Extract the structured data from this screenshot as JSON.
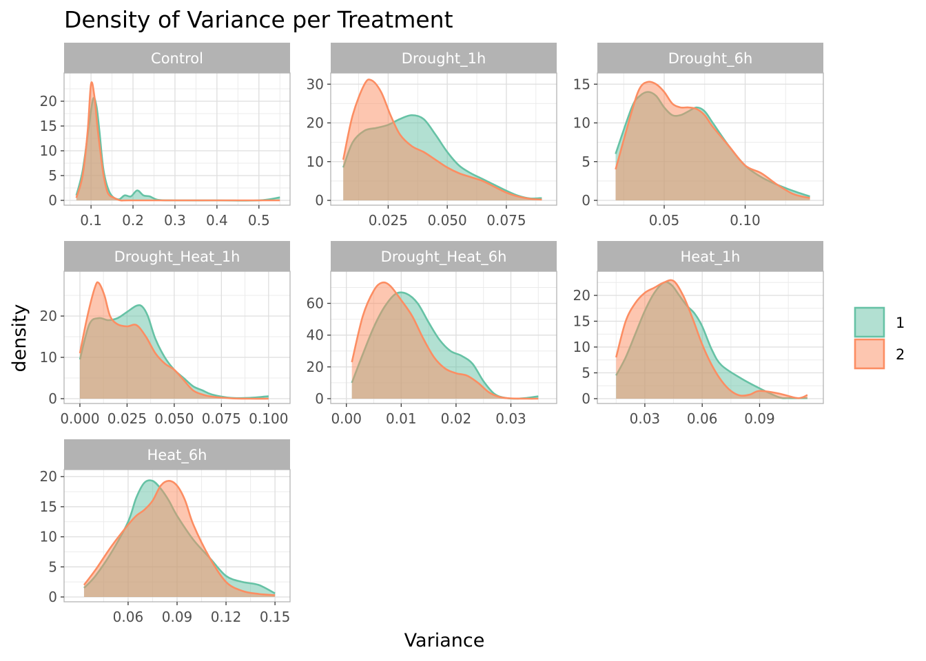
{
  "chart_data": {
    "type": "area",
    "title": "Density of Variance per Treatment",
    "xlabel": "Variance",
    "ylabel": "density",
    "legend": {
      "placement": "right",
      "entries": [
        {
          "label": "1",
          "color": "#66C2A5"
        },
        {
          "label": "2",
          "color": "#FC8D62"
        }
      ]
    },
    "grid": true,
    "panels": [
      {
        "name": "Control",
        "xlim": [
          0.06,
          0.55
        ],
        "ylim": [
          0,
          25
        ],
        "xticks": [
          0.1,
          0.2,
          0.3,
          0.4,
          0.5
        ],
        "xtick_labels": [
          "0.1",
          "0.2",
          "0.3",
          "0.4",
          "0.5"
        ],
        "yticks": [
          0,
          5,
          10,
          15,
          20
        ],
        "ytick_labels": [
          "0",
          "5",
          "10",
          "15",
          "20"
        ],
        "series": [
          {
            "name": "1",
            "x": [
              0.065,
              0.08,
              0.095,
              0.105,
              0.113,
              0.12,
              0.13,
              0.145,
              0.165,
              0.18,
              0.195,
              0.21,
              0.225,
              0.24,
              0.26,
              0.3,
              0.4,
              0.5,
              0.55
            ],
            "y": [
              1.0,
              6.0,
              15.0,
              20.5,
              19.0,
              14.0,
              6.0,
              1.5,
              0.2,
              1.0,
              0.8,
              2.0,
              1.0,
              0.8,
              0.1,
              0.0,
              0.0,
              0.0,
              0.6
            ]
          },
          {
            "name": "2",
            "x": [
              0.065,
              0.08,
              0.092,
              0.1,
              0.108,
              0.115,
              0.122,
              0.13,
              0.14,
              0.155,
              0.17,
              0.19,
              0.3,
              0.4,
              0.5,
              0.55
            ],
            "y": [
              0.5,
              5.0,
              14.0,
              23.5,
              21.0,
              15.0,
              10.0,
              5.0,
              1.5,
              0.5,
              0.0,
              0.0,
              0.0,
              0.0,
              0.0,
              0.0
            ]
          }
        ]
      },
      {
        "name": "Drought_1h",
        "xlim": [
          0.005,
          0.092
        ],
        "ylim": [
          0,
          32
        ],
        "xticks": [
          0.025,
          0.05,
          0.075
        ],
        "xtick_labels": [
          "0.025",
          "0.050",
          "0.075"
        ],
        "yticks": [
          0,
          10,
          20,
          30
        ],
        "ytick_labels": [
          "0",
          "10",
          "20",
          "30"
        ],
        "series": [
          {
            "name": "1",
            "x": [
              0.006,
              0.01,
              0.015,
              0.02,
              0.025,
              0.03,
              0.035,
              0.04,
              0.045,
              0.05,
              0.055,
              0.06,
              0.065,
              0.07,
              0.075,
              0.08,
              0.085,
              0.09
            ],
            "y": [
              8.5,
              15.0,
              18.0,
              18.7,
              19.5,
              21.0,
              22.0,
              21.0,
              17.0,
              12.5,
              9.0,
              7.0,
              5.5,
              4.0,
              2.5,
              1.2,
              0.5,
              0.6
            ]
          },
          {
            "name": "2",
            "x": [
              0.006,
              0.01,
              0.015,
              0.018,
              0.022,
              0.026,
              0.03,
              0.035,
              0.04,
              0.045,
              0.05,
              0.055,
              0.06,
              0.065,
              0.07,
              0.075,
              0.08,
              0.085,
              0.09
            ],
            "y": [
              10.5,
              22.0,
              30.0,
              31.0,
              28.0,
              22.0,
              17.0,
              14.0,
              12.5,
              10.5,
              8.5,
              7.0,
              6.0,
              5.0,
              3.5,
              2.0,
              1.0,
              0.4,
              0.2
            ]
          }
        ]
      },
      {
        "name": "Drought_6h",
        "xlim": [
          0.015,
          0.142
        ],
        "ylim": [
          0,
          16
        ],
        "xticks": [
          0.05,
          0.1
        ],
        "xtick_labels": [
          "0.05",
          "0.10"
        ],
        "yticks": [
          0,
          5,
          10,
          15
        ],
        "ytick_labels": [
          "0",
          "5",
          "10",
          "15"
        ],
        "series": [
          {
            "name": "1",
            "x": [
              0.02,
              0.03,
              0.035,
              0.04,
              0.045,
              0.05,
              0.055,
              0.06,
              0.065,
              0.07,
              0.075,
              0.08,
              0.09,
              0.1,
              0.11,
              0.12,
              0.13,
              0.14
            ],
            "y": [
              6.0,
              12.0,
              13.5,
              14.0,
              13.5,
              12.0,
              11.0,
              11.0,
              11.5,
              12.0,
              11.5,
              10.0,
              7.0,
              4.5,
              3.0,
              2.0,
              1.2,
              0.5
            ]
          },
          {
            "name": "2",
            "x": [
              0.02,
              0.03,
              0.035,
              0.04,
              0.045,
              0.05,
              0.055,
              0.06,
              0.065,
              0.07,
              0.075,
              0.08,
              0.09,
              0.1,
              0.11,
              0.12,
              0.13,
              0.14
            ],
            "y": [
              4.0,
              11.5,
              14.5,
              15.3,
              15.0,
              14.0,
              12.5,
              12.0,
              12.0,
              11.8,
              11.0,
              9.5,
              7.0,
              4.5,
              3.5,
              2.0,
              0.8,
              0.3
            ]
          }
        ]
      },
      {
        "name": "Drought_Heat_1h",
        "xlim": [
          -0.003,
          0.106
        ],
        "ylim": [
          0,
          30
        ],
        "xticks": [
          0.0,
          0.025,
          0.05,
          0.075,
          0.1
        ],
        "xtick_labels": [
          "0.000",
          "0.025",
          "0.050",
          "0.075",
          "0.100"
        ],
        "yticks": [
          0,
          10,
          20
        ],
        "ytick_labels": [
          "0",
          "10",
          "20"
        ],
        "series": [
          {
            "name": "1",
            "x": [
              0.0,
              0.005,
              0.01,
              0.015,
              0.02,
              0.025,
              0.03,
              0.033,
              0.036,
              0.04,
              0.045,
              0.05,
              0.055,
              0.06,
              0.065,
              0.07,
              0.08,
              0.09,
              0.1
            ],
            "y": [
              9.5,
              18.0,
              19.5,
              19.0,
              19.5,
              21.0,
              22.5,
              22.3,
              20.0,
              14.5,
              10.0,
              7.0,
              5.0,
              3.0,
              2.0,
              1.0,
              0.2,
              0.2,
              0.6
            ]
          },
          {
            "name": "2",
            "x": [
              0.0,
              0.004,
              0.008,
              0.01,
              0.013,
              0.016,
              0.02,
              0.025,
              0.03,
              0.035,
              0.04,
              0.045,
              0.05,
              0.055,
              0.06,
              0.065,
              0.07,
              0.08,
              0.09,
              0.1
            ],
            "y": [
              11.0,
              20.0,
              27.0,
              28.0,
              25.0,
              20.0,
              18.0,
              17.5,
              17.8,
              15.0,
              11.0,
              8.5,
              7.0,
              4.5,
              2.0,
              1.0,
              0.5,
              0.1,
              0.0,
              0.0
            ]
          }
        ]
      },
      {
        "name": "Drought_Heat_6h",
        "xlim": [
          -0.001,
          0.0365
        ],
        "ylim": [
          0,
          78
        ],
        "xticks": [
          0.0,
          0.01,
          0.02,
          0.03
        ],
        "xtick_labels": [
          "0.00",
          "0.01",
          "0.02",
          "0.03"
        ],
        "yticks": [
          0,
          20,
          40,
          60
        ],
        "ytick_labels": [
          "0",
          "20",
          "40",
          "60"
        ],
        "series": [
          {
            "name": "1",
            "x": [
              0.001,
              0.003,
              0.005,
              0.007,
              0.009,
              0.011,
              0.013,
              0.015,
              0.017,
              0.019,
              0.021,
              0.023,
              0.025,
              0.027,
              0.029,
              0.031,
              0.033,
              0.035
            ],
            "y": [
              10.0,
              28.0,
              45.0,
              58.0,
              66.0,
              66.0,
              60.0,
              48.0,
              37.0,
              30.0,
              27.0,
              22.0,
              11.0,
              3.0,
              0.5,
              0.0,
              0.5,
              1.5
            ]
          },
          {
            "name": "2",
            "x": [
              0.001,
              0.003,
              0.005,
              0.0065,
              0.008,
              0.01,
              0.012,
              0.014,
              0.016,
              0.018,
              0.02,
              0.022,
              0.024,
              0.026,
              0.028,
              0.03,
              0.033,
              0.035
            ],
            "y": [
              23.0,
              52.0,
              68.0,
              73.0,
              71.0,
              62.0,
              52.0,
              38.0,
              26.0,
              19.0,
              16.0,
              14.5,
              10.0,
              4.0,
              1.0,
              0.2,
              0.0,
              0.0
            ]
          }
        ]
      },
      {
        "name": "Heat_1h",
        "xlim": [
          0.0105,
          0.118
        ],
        "ylim": [
          0,
          24
        ],
        "xticks": [
          0.03,
          0.06,
          0.09
        ],
        "xtick_labels": [
          "0.03",
          "0.06",
          "0.09"
        ],
        "yticks": [
          0,
          5,
          10,
          15,
          20
        ],
        "ytick_labels": [
          "0",
          "5",
          "10",
          "15",
          "20"
        ],
        "series": [
          {
            "name": "1",
            "x": [
              0.015,
              0.02,
              0.025,
              0.03,
              0.035,
              0.04,
              0.044,
              0.048,
              0.052,
              0.056,
              0.06,
              0.065,
              0.07,
              0.08,
              0.09,
              0.1,
              0.105,
              0.115
            ],
            "y": [
              4.5,
              8.0,
              12.5,
              17.0,
              20.5,
              22.5,
              22.0,
              20.0,
              18.0,
              16.5,
              14.0,
              9.5,
              6.5,
              4.0,
              2.0,
              0.3,
              0.1,
              0.1
            ]
          },
          {
            "name": "2",
            "x": [
              0.015,
              0.02,
              0.025,
              0.03,
              0.035,
              0.04,
              0.045,
              0.05,
              0.055,
              0.06,
              0.065,
              0.07,
              0.075,
              0.08,
              0.085,
              0.09,
              0.1,
              0.11,
              0.115
            ],
            "y": [
              8.0,
              15.0,
              18.5,
              20.5,
              21.5,
              22.5,
              22.8,
              20.0,
              15.5,
              10.5,
              6.5,
              3.5,
              1.5,
              0.6,
              0.8,
              1.5,
              1.0,
              0.1,
              0.7
            ]
          }
        ]
      },
      {
        "name": "Heat_6h",
        "xlim": [
          0.027,
          0.153
        ],
        "ylim": [
          0,
          20.6
        ],
        "xticks": [
          0.06,
          0.09,
          0.12,
          0.15
        ],
        "xtick_labels": [
          "0.06",
          "0.09",
          "0.12",
          "0.15"
        ],
        "yticks": [
          0,
          5,
          10,
          15,
          20
        ],
        "ytick_labels": [
          "0",
          "5",
          "10",
          "15",
          "20"
        ],
        "series": [
          {
            "name": "1",
            "x": [
              0.033,
              0.04,
              0.05,
              0.06,
              0.065,
              0.07,
              0.075,
              0.08,
              0.085,
              0.09,
              0.1,
              0.11,
              0.12,
              0.13,
              0.14,
              0.15
            ],
            "y": [
              1.5,
              3.5,
              7.5,
              12.5,
              16.5,
              19.0,
              19.3,
              18.0,
              16.0,
              13.5,
              9.5,
              6.5,
              3.5,
              2.5,
              2.0,
              0.6
            ]
          },
          {
            "name": "2",
            "x": [
              0.033,
              0.04,
              0.05,
              0.06,
              0.065,
              0.07,
              0.075,
              0.08,
              0.085,
              0.09,
              0.095,
              0.1,
              0.11,
              0.12,
              0.13,
              0.14,
              0.15
            ],
            "y": [
              2.0,
              4.5,
              8.5,
              12.0,
              13.5,
              14.5,
              16.0,
              18.5,
              19.3,
              18.5,
              16.0,
              12.0,
              6.5,
              2.5,
              1.0,
              0.5,
              0.3
            ]
          }
        ]
      }
    ]
  }
}
